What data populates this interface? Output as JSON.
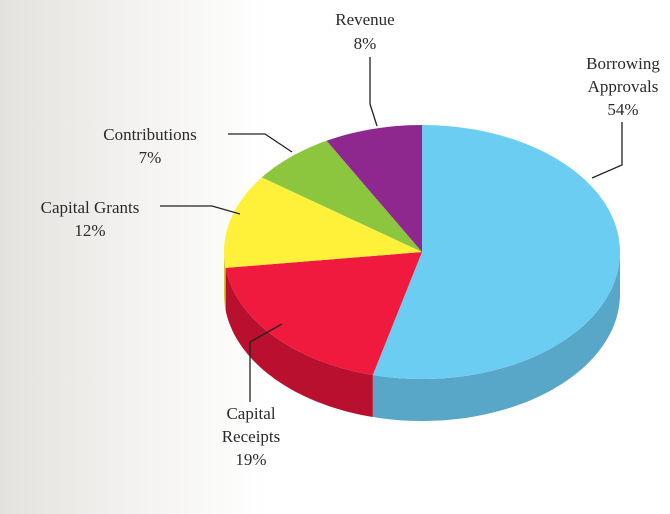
{
  "chart_data": {
    "type": "pie",
    "categories": [
      "Borrowing Approvals",
      "Capital Receipts",
      "Capital Grants",
      "Contributions",
      "Revenue"
    ],
    "values": [
      54,
      19,
      12,
      7,
      8
    ],
    "value_labels": [
      "54%",
      "19%",
      "12%",
      "7%",
      "8%"
    ],
    "colors": [
      "#6ccdf3",
      "#ef1a3e",
      "#fff03a",
      "#8cc63f",
      "#8e288e"
    ],
    "side_colors": [
      "#58a7c8",
      "#b8102e",
      "#d6c82c",
      "#6fa02f",
      "#6e1e6e"
    ]
  }
}
